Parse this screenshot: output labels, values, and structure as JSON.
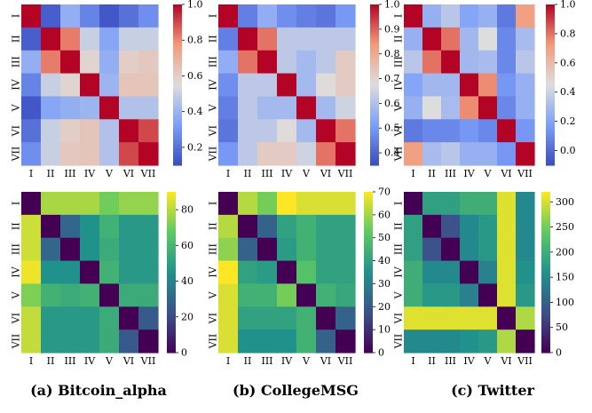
{
  "captions": [
    "(a) Bitcoin_alpha",
    "(b) CollegeMSG",
    "(c) Twitter"
  ],
  "labels": [
    "I",
    "II",
    "III",
    "IV",
    "V",
    "VI",
    "VII"
  ],
  "chart_data": [
    {
      "type": "heatmap",
      "dataset": "Bitcoin_alpha",
      "colormap": "coolwarm",
      "x": [
        "I",
        "II",
        "III",
        "IV",
        "V",
        "VI",
        "VII"
      ],
      "y": [
        "I",
        "II",
        "III",
        "IV",
        "V",
        "VI",
        "VII"
      ],
      "vmin": 0.1,
      "vmax": 1.0,
      "colorbar_ticks": [
        0.2,
        0.4,
        0.6,
        0.8,
        1.0
      ],
      "values": [
        [
          1.0,
          0.15,
          0.38,
          0.25,
          0.13,
          0.2,
          0.28
        ],
        [
          0.15,
          1.0,
          0.82,
          0.5,
          0.35,
          0.5,
          0.5
        ],
        [
          0.38,
          0.82,
          1.0,
          0.58,
          0.38,
          0.6,
          0.62
        ],
        [
          0.25,
          0.5,
          0.58,
          1.0,
          0.4,
          0.63,
          0.63
        ],
        [
          0.13,
          0.35,
          0.38,
          0.4,
          1.0,
          0.45,
          0.45
        ],
        [
          0.2,
          0.5,
          0.6,
          0.63,
          0.45,
          1.0,
          0.9
        ],
        [
          0.28,
          0.5,
          0.62,
          0.63,
          0.45,
          0.9,
          1.0
        ]
      ]
    },
    {
      "type": "heatmap",
      "dataset": "CollegeMSG",
      "colormap": "coolwarm",
      "x": [
        "I",
        "II",
        "III",
        "IV",
        "V",
        "VI",
        "VII"
      ],
      "y": [
        "I",
        "II",
        "III",
        "IV",
        "V",
        "VI",
        "VII"
      ],
      "vmin": 0.35,
      "vmax": 1.0,
      "colorbar_ticks": [
        0.4,
        0.5,
        0.6,
        0.7,
        0.8,
        0.9,
        1.0
      ],
      "values": [
        [
          1.0,
          0.45,
          0.55,
          0.48,
          0.45,
          0.43,
          0.5
        ],
        [
          0.45,
          1.0,
          0.88,
          0.62,
          0.62,
          0.62,
          0.62
        ],
        [
          0.55,
          0.88,
          1.0,
          0.62,
          0.58,
          0.62,
          0.72
        ],
        [
          0.48,
          0.62,
          0.62,
          1.0,
          0.58,
          0.68,
          0.72
        ],
        [
          0.45,
          0.62,
          0.58,
          0.58,
          1.0,
          0.58,
          0.65
        ],
        [
          0.43,
          0.62,
          0.62,
          0.68,
          0.58,
          1.0,
          0.88
        ],
        [
          0.5,
          0.62,
          0.72,
          0.72,
          0.65,
          0.88,
          1.0
        ]
      ]
    },
    {
      "type": "heatmap",
      "dataset": "Twitter",
      "colormap": "coolwarm",
      "x": [
        "I",
        "II",
        "III",
        "IV",
        "V",
        "VI",
        "VII"
      ],
      "y": [
        "I",
        "II",
        "III",
        "IV",
        "V",
        "VI",
        "VII"
      ],
      "vmin": -0.1,
      "vmax": 1.0,
      "colorbar_ticks": [
        0.0,
        0.2,
        0.4,
        0.6,
        0.8,
        1.0
      ],
      "values": [
        [
          1.0,
          0.25,
          0.35,
          0.2,
          0.25,
          0.05,
          0.7
        ],
        [
          0.25,
          1.0,
          0.8,
          0.28,
          0.45,
          0.1,
          0.3
        ],
        [
          0.35,
          0.8,
          1.0,
          0.28,
          0.3,
          0.1,
          0.35
        ],
        [
          0.2,
          0.28,
          0.28,
          1.0,
          0.75,
          0.15,
          0.25
        ],
        [
          0.25,
          0.45,
          0.3,
          0.75,
          1.0,
          0.1,
          0.25
        ],
        [
          0.05,
          0.1,
          0.1,
          0.15,
          0.1,
          1.0,
          0.15
        ],
        [
          0.7,
          0.3,
          0.35,
          0.25,
          0.25,
          0.15,
          1.0
        ]
      ]
    },
    {
      "type": "heatmap",
      "dataset": "Bitcoin_alpha",
      "colormap": "viridis",
      "x": [
        "I",
        "II",
        "III",
        "IV",
        "V",
        "VI",
        "VII"
      ],
      "y": [
        "I",
        "II",
        "III",
        "IV",
        "V",
        "VI",
        "VII"
      ],
      "vmin": 0,
      "vmax": 90,
      "colorbar_ticks": [
        0,
        20,
        40,
        60,
        80
      ],
      "values": [
        [
          0,
          78,
          78,
          78,
          70,
          75,
          75
        ],
        [
          83,
          0,
          30,
          45,
          58,
          48,
          48
        ],
        [
          83,
          30,
          0,
          45,
          55,
          48,
          48
        ],
        [
          88,
          45,
          45,
          0,
          58,
          48,
          48
        ],
        [
          72,
          58,
          55,
          58,
          0,
          55,
          55
        ],
        [
          82,
          48,
          48,
          48,
          55,
          0,
          25
        ],
        [
          82,
          48,
          48,
          48,
          55,
          25,
          0
        ]
      ]
    },
    {
      "type": "heatmap",
      "dataset": "CollegeMSG",
      "colormap": "viridis",
      "x": [
        "I",
        "II",
        "III",
        "IV",
        "V",
        "VI",
        "VII"
      ],
      "y": [
        "I",
        "II",
        "III",
        "IV",
        "V",
        "VI",
        "VII"
      ],
      "vmin": 0,
      "vmax": 70,
      "colorbar_ticks": [
        0,
        10,
        20,
        30,
        40,
        50,
        60,
        70
      ],
      "values": [
        [
          0,
          62,
          55,
          70,
          66,
          66,
          66
        ],
        [
          62,
          0,
          22,
          40,
          45,
          40,
          40
        ],
        [
          58,
          22,
          0,
          38,
          45,
          40,
          40
        ],
        [
          70,
          40,
          38,
          0,
          50,
          40,
          40
        ],
        [
          66,
          45,
          45,
          55,
          0,
          45,
          42
        ],
        [
          66,
          40,
          40,
          40,
          45,
          0,
          22
        ],
        [
          66,
          35,
          35,
          35,
          45,
          22,
          0
        ]
      ]
    },
    {
      "type": "heatmap",
      "dataset": "Twitter",
      "colormap": "viridis",
      "x": [
        "I",
        "II",
        "III",
        "IV",
        "V",
        "VI",
        "VII"
      ],
      "y": [
        "I",
        "II",
        "III",
        "IV",
        "V",
        "VI",
        "VII"
      ],
      "vmin": 0,
      "vmax": 320,
      "colorbar_ticks": [
        0,
        50,
        100,
        150,
        200,
        250,
        300
      ],
      "values": [
        [
          0,
          180,
          180,
          200,
          200,
          305,
          150
        ],
        [
          180,
          0,
          80,
          150,
          170,
          305,
          150
        ],
        [
          180,
          80,
          0,
          150,
          170,
          305,
          150
        ],
        [
          200,
          150,
          150,
          0,
          140,
          305,
          160
        ],
        [
          200,
          170,
          170,
          140,
          0,
          305,
          170
        ],
        [
          305,
          305,
          305,
          305,
          305,
          0,
          280
        ],
        [
          150,
          150,
          150,
          160,
          170,
          280,
          0
        ]
      ]
    }
  ]
}
